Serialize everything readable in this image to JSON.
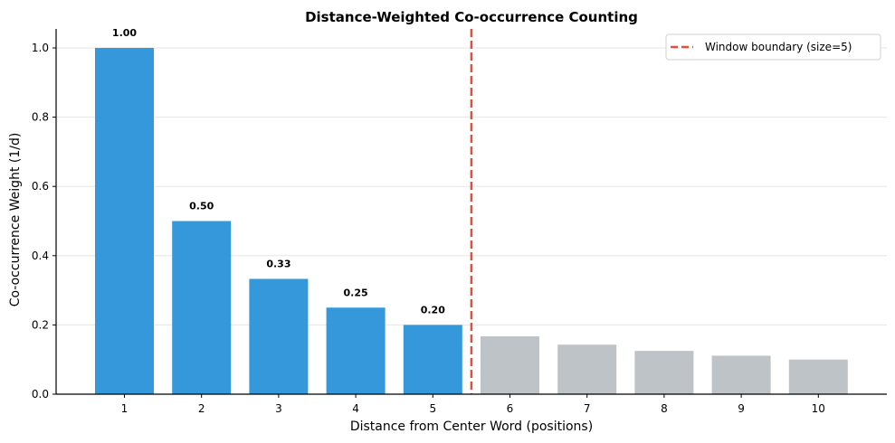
{
  "chart_data": {
    "type": "bar",
    "title": "Distance-Weighted Co-occurrence Counting",
    "xlabel": "Distance from Center Word (positions)",
    "ylabel": "Co-occurrence Weight (1/d)",
    "categories": [
      "1",
      "2",
      "3",
      "4",
      "5",
      "6",
      "7",
      "8",
      "9",
      "10"
    ],
    "values": [
      1.0,
      0.5,
      0.333,
      0.25,
      0.2,
      0.167,
      0.143,
      0.125,
      0.111,
      0.1
    ],
    "bar_labels": [
      "1.00",
      "0.50",
      "0.33",
      "0.25",
      "0.20",
      null,
      null,
      null,
      null,
      null
    ],
    "in_window": [
      true,
      true,
      true,
      true,
      true,
      false,
      false,
      false,
      false,
      false
    ],
    "colors": {
      "in_window": "#3498db",
      "out_window": "#bdc3c7",
      "boundary": "#e74c3c",
      "grid": "#e6e6e6"
    },
    "yticks": [
      0.0,
      0.2,
      0.4,
      0.6,
      0.8,
      1.0
    ],
    "ytick_labels": [
      "0.0",
      "0.2",
      "0.4",
      "0.6",
      "0.8",
      "1.0"
    ],
    "ylim": [
      0,
      1.05
    ],
    "xlim": [
      0.3,
      10.9
    ],
    "grid": "y",
    "vline": {
      "x": 5.5,
      "style": "dashed",
      "label": "Window boundary (size=5)"
    },
    "legend": {
      "position": "upper right",
      "entries": [
        "Window boundary (size=5)"
      ]
    }
  }
}
